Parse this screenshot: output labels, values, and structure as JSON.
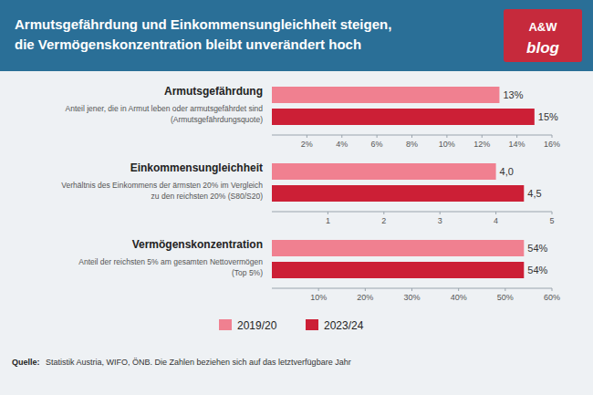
{
  "title": "Armutsgefährdung und Einkommensungleichheit steigen,\ndie Vermögenskonzentration bleibt unverändert hoch",
  "annotations": [
    "A&W",
    "blog",
    "Quelle:",
    "Statistik Austria, WIFO, ÖNB. Die Zahlen beziehen sich auf das letztverfügbare Jahr"
  ],
  "chart_data": [
    {
      "type": "bar",
      "orientation": "horizontal",
      "title": "Armutsgefährdung",
      "subtitle": "Anteil jener, die in Armut leben oder armutsgefährdet sind\n(Armutsgefährdungsquote)",
      "categories": [
        null
      ],
      "series": [
        {
          "name": "2019/20",
          "color": "#f08090",
          "values": [
            13
          ],
          "value_labels": [
            "13%"
          ]
        },
        {
          "name": "2023/24",
          "color": "#cc1f36",
          "values": [
            15
          ],
          "value_labels": [
            "15%"
          ]
        }
      ],
      "xlim": [
        0,
        16
      ],
      "xticks": [
        {
          "value": 2,
          "label": "2%"
        },
        {
          "value": 4,
          "label": "4%"
        },
        {
          "value": 6,
          "label": "6%"
        },
        {
          "value": 8,
          "label": "8%"
        },
        {
          "value": 10,
          "label": "10%"
        },
        {
          "value": 12,
          "label": "12%"
        },
        {
          "value": 14,
          "label": "14%"
        },
        {
          "value": 16,
          "label": "16%"
        }
      ],
      "data_labels": true,
      "legend": "bottom"
    },
    {
      "type": "bar",
      "orientation": "horizontal",
      "title": "Einkommensungleichheit",
      "subtitle": "Verhältnis des Einkommens der ärmsten 20% im Vergleich\nzu den reichsten 20% (S80/S20)",
      "categories": [
        null
      ],
      "series": [
        {
          "name": "2019/20",
          "color": "#f08090",
          "values": [
            4.0
          ],
          "value_labels": [
            "4,0"
          ]
        },
        {
          "name": "2023/24",
          "color": "#cc1f36",
          "values": [
            4.5
          ],
          "value_labels": [
            "4,5"
          ]
        }
      ],
      "xlim": [
        0,
        5
      ],
      "xticks": [
        1,
        2,
        3,
        4,
        5
      ],
      "data_labels": true
    },
    {
      "type": "bar",
      "orientation": "horizontal",
      "title": "Vermögenskonzentration",
      "subtitle": "Anteil der reichsten 5% am gesamten Nettovermögen\n(Top 5%)",
      "categories": [
        null
      ],
      "series": [
        {
          "name": "2019/20",
          "color": "#f08090",
          "values": [
            54
          ],
          "value_labels": [
            "54%"
          ]
        },
        {
          "name": "2023/24",
          "color": "#cc1f36",
          "values": [
            54
          ],
          "value_labels": [
            "54%"
          ]
        }
      ],
      "xlim": [
        0,
        60
      ],
      "xticks": [
        {
          "value": 10,
          "label": "10%"
        },
        {
          "value": 20,
          "label": "20%"
        },
        {
          "value": 30,
          "label": "30%"
        },
        {
          "value": 40,
          "label": "40%"
        },
        {
          "value": 50,
          "label": "50%"
        },
        {
          "value": 60,
          "label": "60%"
        }
      ],
      "data_labels": true
    }
  ]
}
